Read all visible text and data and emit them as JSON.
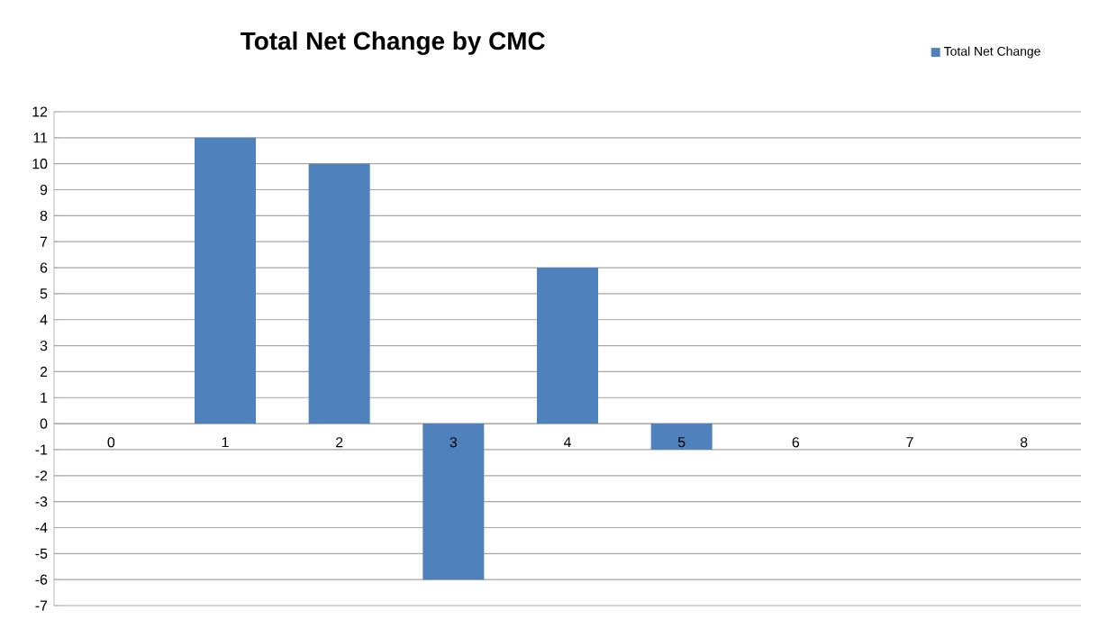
{
  "chart_data": {
    "type": "bar",
    "title": "Total Net Change by CMC",
    "categories": [
      "0",
      "1",
      "2",
      "3",
      "4",
      "5",
      "6",
      "7",
      "8"
    ],
    "series": [
      {
        "name": "Total Net Change",
        "color": "#4f81bd",
        "values": [
          0,
          11,
          10,
          -6,
          6,
          -1,
          0,
          0,
          0
        ]
      }
    ],
    "ylim": [
      -7,
      12
    ],
    "yticks": [
      -7,
      -6,
      -5,
      -4,
      -3,
      -2,
      -1,
      0,
      1,
      2,
      3,
      4,
      5,
      6,
      7,
      8,
      9,
      10,
      11,
      12
    ],
    "grid": "y",
    "legend": "top right"
  }
}
